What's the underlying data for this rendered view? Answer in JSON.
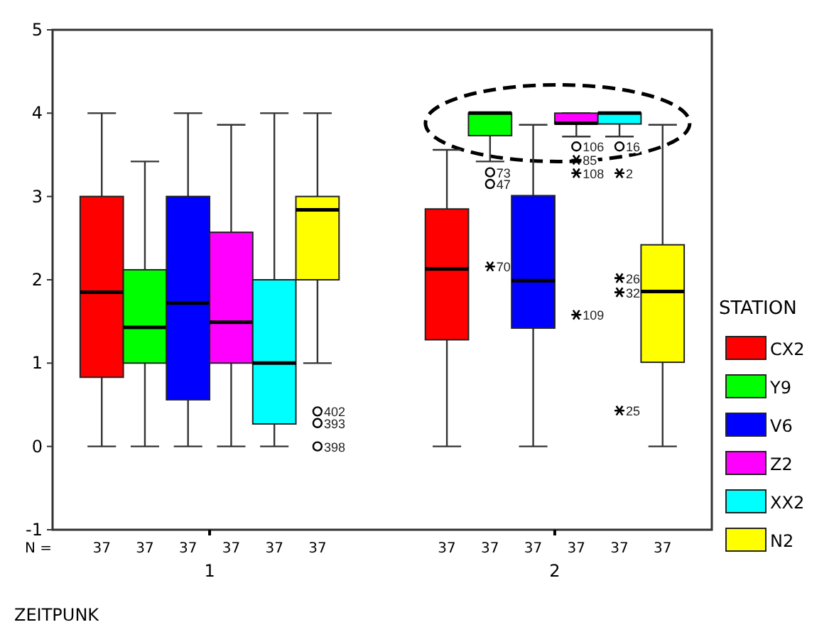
{
  "chart_data": {
    "type": "box",
    "xlabel": "ZEITPUNK",
    "legend_title": "STATION",
    "legend": "right",
    "grid": false,
    "categories": [
      "1",
      "2"
    ],
    "ylim": [
      -1,
      5
    ],
    "yticks": [
      -1,
      0,
      1,
      2,
      3,
      4,
      5
    ],
    "series": [
      {
        "name": "CX2",
        "color": "#ff0000",
        "boxes": [
          {
            "low": 0,
            "q1": 0.83,
            "median": 1.85,
            "q3": 3,
            "high": 4
          },
          {
            "low": 0,
            "q1": 1.28,
            "median": 2.13,
            "q3": 2.85,
            "high": 3.56
          }
        ]
      },
      {
        "name": "Y9",
        "color": "#00ff00",
        "boxes": [
          {
            "low": 0,
            "q1": 1,
            "median": 1.43,
            "q3": 2.12,
            "high": 3.42
          },
          {
            "low": 3.42,
            "q1": 3.73,
            "median": 4,
            "q3": 4,
            "high": 4,
            "outliers": [
              3.29,
              3.15,
              2.16
            ]
          }
        ]
      },
      {
        "name": "V6",
        "color": "#0000ff",
        "boxes": [
          {
            "low": 0,
            "q1": 0.56,
            "median": 1.72,
            "q3": 3,
            "high": 4
          },
          {
            "low": 0,
            "q1": 1.42,
            "median": 1.99,
            "q3": 3.01,
            "high": 3.86
          }
        ]
      },
      {
        "name": "Z2",
        "color": "#ff00ff",
        "boxes": [
          {
            "low": 0,
            "q1": 1,
            "median": 1.49,
            "q3": 2.57,
            "high": 3.86
          },
          {
            "low": 3.72,
            "q1": 3.87,
            "median": 3.88,
            "q3": 4,
            "high": 4,
            "outliers": [
              3.6,
              3.44,
              3.28,
              1.58
            ]
          }
        ]
      },
      {
        "name": "XX2",
        "color": "#00ffff",
        "boxes": [
          {
            "low": 0,
            "q1": 0.27,
            "median": 1,
            "q3": 2,
            "high": 4
          },
          {
            "low": 3.72,
            "q1": 3.87,
            "median": 4,
            "q3": 4,
            "high": 4,
            "outliers": [
              3.6,
              3.28,
              2.02,
              1.85,
              0.43
            ]
          }
        ]
      },
      {
        "name": "N2",
        "color": "#ffff00",
        "boxes": [
          {
            "low": 1,
            "q1": 2,
            "median": 2.84,
            "q3": 3,
            "high": 4,
            "outliers": [
              0.42,
              0.28,
              0
            ]
          },
          {
            "low": 0,
            "q1": 1.01,
            "median": 1.86,
            "q3": 2.42,
            "high": 3.86
          }
        ]
      }
    ],
    "annotations": [
      "73",
      "47",
      "70",
      "106",
      "85",
      "108",
      "109",
      "16",
      "2",
      "26",
      "32",
      "25",
      "402",
      "393",
      "398",
      "N =",
      "37",
      "37",
      "37",
      "37",
      "37",
      "37",
      "37",
      "37",
      "37",
      "37",
      "37",
      "37"
    ]
  }
}
